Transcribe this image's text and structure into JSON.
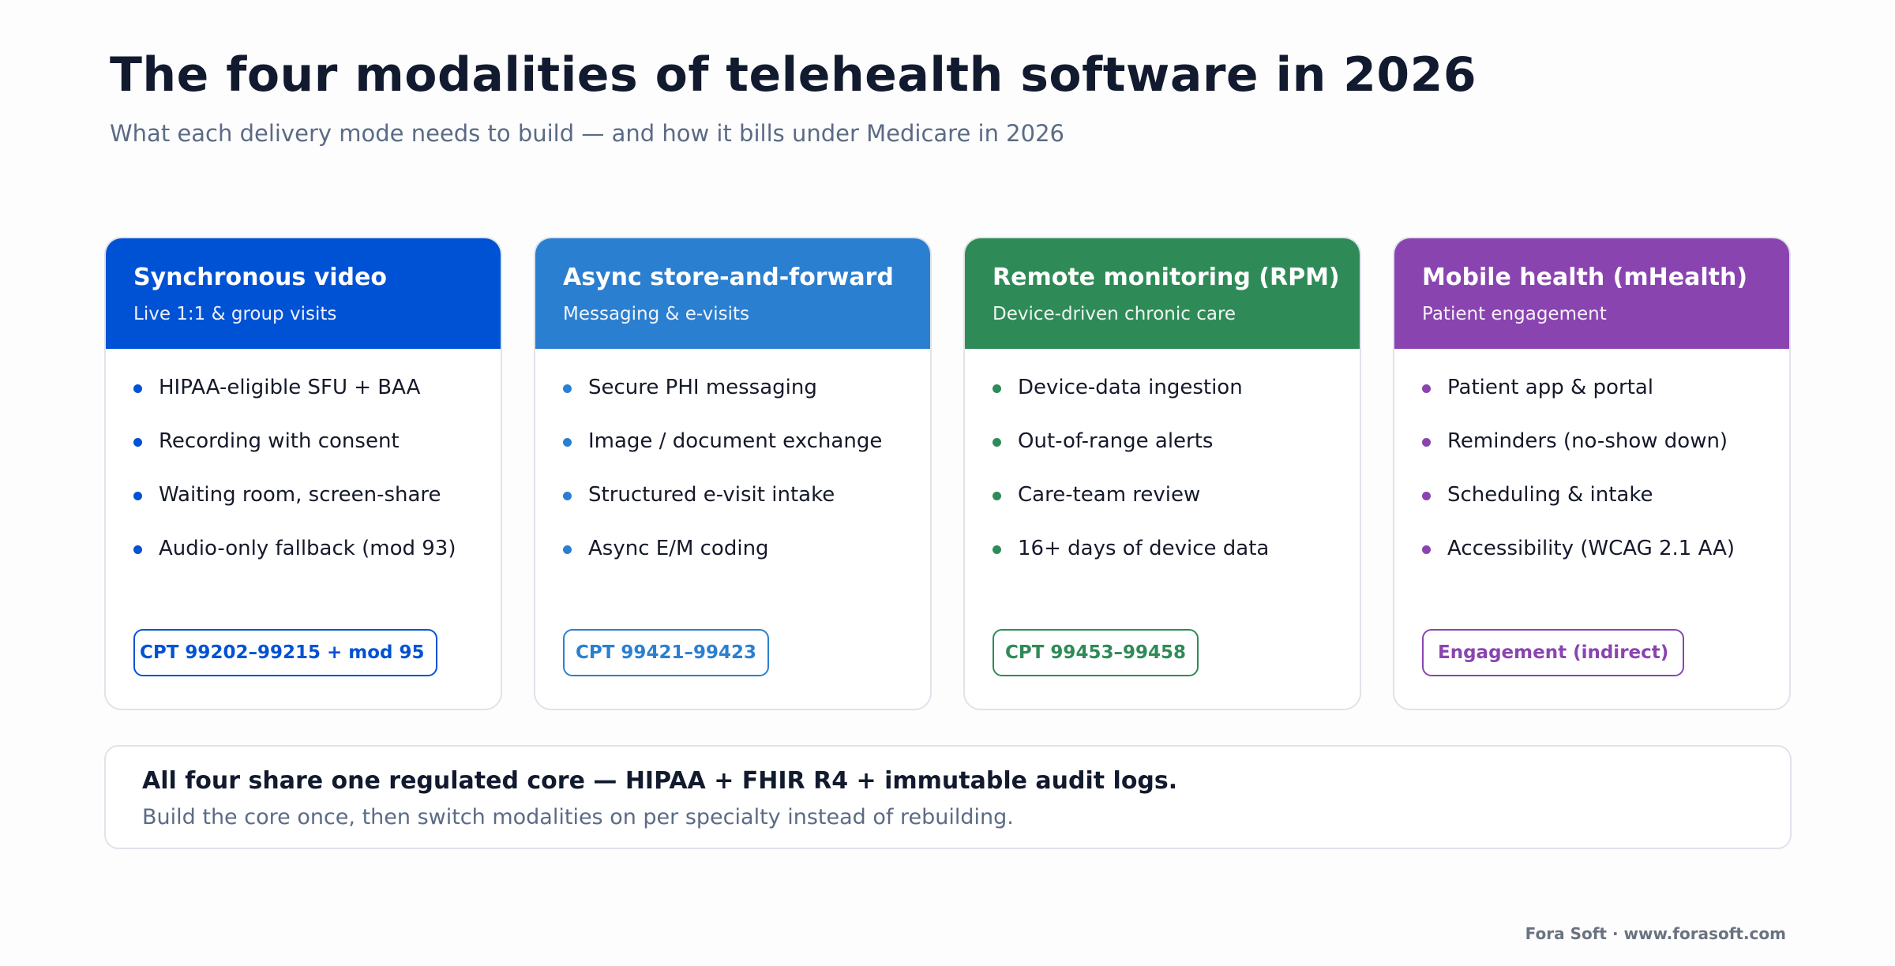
{
  "header": {
    "title": "The four modalities of telehealth software in 2026",
    "subtitle": "What each delivery mode needs to build — and how it bills under Medicare in 2026"
  },
  "cards": [
    {
      "title": "Synchronous video",
      "subtitle": "Live 1:1 & group visits",
      "color": "#0052d4",
      "items": [
        "HIPAA-eligible SFU + BAA",
        "Recording with consent",
        "Waiting room, screen-share",
        "Audio-only fallback (mod 93)"
      ],
      "badge": "CPT 99202–99215 + mod 95"
    },
    {
      "title": "Async store-and-forward",
      "subtitle": "Messaging & e-visits",
      "color": "#2b7fd0",
      "items": [
        "Secure PHI messaging",
        "Image / document exchange",
        "Structured e-visit intake",
        "Async E/M coding"
      ],
      "badge": "CPT 99421–99423"
    },
    {
      "title": "Remote monitoring (RPM)",
      "subtitle": "Device-driven chronic care",
      "color": "#2e8b57",
      "items": [
        "Device-data ingestion",
        "Out-of-range alerts",
        "Care-team review",
        "16+ days of device data"
      ],
      "badge": "CPT 99453–99458"
    },
    {
      "title": "Mobile health (mHealth)",
      "subtitle": "Patient engagement",
      "color": "#8a44b0",
      "items": [
        "Patient app & portal",
        "Reminders (no-show down)",
        "Scheduling & intake",
        "Accessibility (WCAG 2.1 AA)"
      ],
      "badge": "Engagement (indirect)"
    }
  ],
  "footer": {
    "headline": "All four share one regulated core — HIPAA + FHIR R4 + immutable audit logs.",
    "subline": "Build the core once, then switch modalities on per specialty instead of rebuilding."
  },
  "credit": "Fora Soft · www.forasoft.com"
}
